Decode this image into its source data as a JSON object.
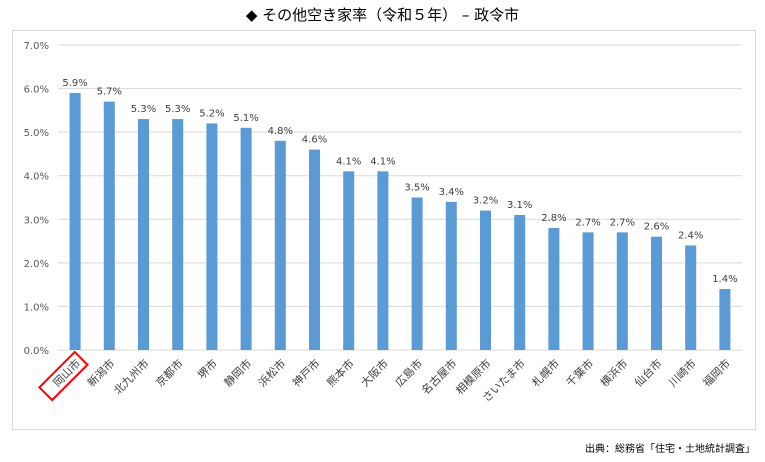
{
  "chart_data": {
    "type": "bar",
    "title": "◆ その他空き家率（令和５年） – 政令市",
    "categories": [
      "岡山市",
      "新潟市",
      "北九州市",
      "京都市",
      "堺市",
      "静岡市",
      "浜松市",
      "神戸市",
      "熊本市",
      "大阪市",
      "広島市",
      "名古屋市",
      "相模原市",
      "さいたま市",
      "札幌市",
      "千葉市",
      "横浜市",
      "仙台市",
      "川崎市",
      "福岡市"
    ],
    "values": [
      5.9,
      5.7,
      5.3,
      5.3,
      5.2,
      5.1,
      4.8,
      4.6,
      4.1,
      4.1,
      3.5,
      3.4,
      3.2,
      3.1,
      2.8,
      2.7,
      2.7,
      2.6,
      2.4,
      1.4
    ],
    "data_labels": [
      "5.9%",
      "5.7%",
      "5.3%",
      "5.3%",
      "5.2%",
      "5.1%",
      "4.8%",
      "4.6%",
      "4.1%",
      "4.1%",
      "3.5%",
      "3.4%",
      "3.2%",
      "3.1%",
      "2.8%",
      "2.7%",
      "2.7%",
      "2.6%",
      "2.4%",
      "1.4%"
    ],
    "yticks": [
      "0.0%",
      "1.0%",
      "2.0%",
      "3.0%",
      "4.0%",
      "5.0%",
      "6.0%",
      "7.0%"
    ],
    "ylim": [
      0,
      7
    ],
    "grid": true,
    "highlighted_category": "岡山市",
    "bar_color": "#5b9bd5",
    "highlight_color": "#ff0000"
  },
  "source": "出典：総務省「住宅・土地統計調査」"
}
